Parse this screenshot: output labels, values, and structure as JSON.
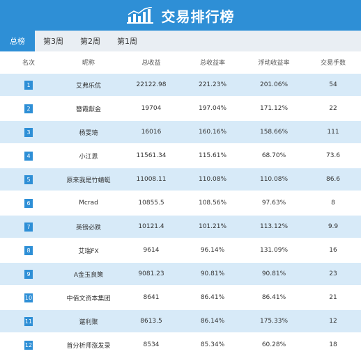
{
  "header": {
    "title": "交易排行榜",
    "icon": "bar-chart-trend-icon"
  },
  "colors": {
    "accent": "#2e8fd6",
    "row_highlight": "#d7eaf8",
    "tab_bar": "#e9eef3"
  },
  "tabs": [
    {
      "label": "总榜",
      "active": true
    },
    {
      "label": "第3周",
      "active": false
    },
    {
      "label": "第2周",
      "active": false
    },
    {
      "label": "第1周",
      "active": false
    }
  ],
  "table": {
    "columns": [
      "名次",
      "昵称",
      "总收益",
      "总收益率",
      "浮动收益率",
      "交易手数"
    ],
    "rows": [
      {
        "rank": "1",
        "name": "艾弗乐优",
        "total": "22122.98",
        "rate": "221.23%",
        "float": "201.06%",
        "lots": "54"
      },
      {
        "rank": "2",
        "name": "簪霞獻金",
        "total": "19704",
        "rate": "197.04%",
        "float": "171.12%",
        "lots": "22"
      },
      {
        "rank": "3",
        "name": "杨雯琦",
        "total": "16016",
        "rate": "160.16%",
        "float": "158.66%",
        "lots": "111"
      },
      {
        "rank": "4",
        "name": "小江恩",
        "total": "11561.34",
        "rate": "115.61%",
        "float": "68.70%",
        "lots": "73.6"
      },
      {
        "rank": "5",
        "name": "原来我是竹蜻蜓",
        "total": "11008.11",
        "rate": "110.08%",
        "float": "110.08%",
        "lots": "86.6"
      },
      {
        "rank": "6",
        "name": "Mcrad",
        "total": "10855.5",
        "rate": "108.56%",
        "float": "97.63%",
        "lots": "8"
      },
      {
        "rank": "7",
        "name": "英镑必跌",
        "total": "10121.4",
        "rate": "101.21%",
        "float": "113.12%",
        "lots": "9.9"
      },
      {
        "rank": "8",
        "name": "艾瑞FX",
        "total": "9614",
        "rate": "96.14%",
        "float": "131.09%",
        "lots": "16"
      },
      {
        "rank": "9",
        "name": "A金玉良策",
        "total": "9081.23",
        "rate": "90.81%",
        "float": "90.81%",
        "lots": "23"
      },
      {
        "rank": "10",
        "name": "中佰文资本集团",
        "total": "8641",
        "rate": "86.41%",
        "float": "86.41%",
        "lots": "21"
      },
      {
        "rank": "11",
        "name": "谌利聚",
        "total": "8613.5",
        "rate": "86.14%",
        "float": "175.33%",
        "lots": "12"
      },
      {
        "rank": "12",
        "name": "首分析师涨发录",
        "total": "8534",
        "rate": "85.34%",
        "float": "60.28%",
        "lots": "18"
      }
    ]
  }
}
